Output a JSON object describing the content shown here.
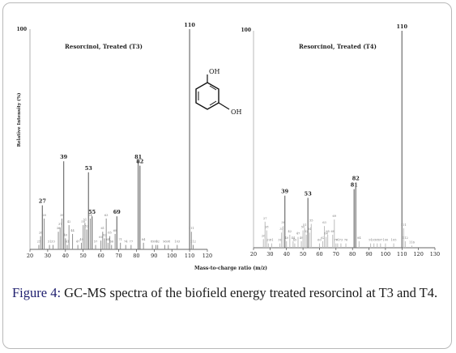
{
  "caption": {
    "label": "Figure 4:",
    "text": " GC-MS spectra of the biofield energy treated resorcinol at T3 and T4."
  },
  "structure": {
    "oh_top": "OH",
    "oh_bottom": "OH"
  },
  "shared_axes": {
    "xlabel": "Mass-to-charge ratio (m/z)",
    "ylabel": "Relative Intensity (%)"
  },
  "colors": {
    "t3_peaks": "#8f8f8f",
    "t4_peaks": "#bcbcbc",
    "axis": "#222222"
  },
  "chart_data": [
    {
      "type": "bar",
      "title": "Resorcinol, Treated (T3)",
      "ylabel": "Relative Intensity (%)",
      "xlabel": "Mass-to-charge ratio (m/z)",
      "xlim": [
        20,
        120
      ],
      "ylim": [
        0,
        100
      ],
      "xticks": [
        20,
        30,
        40,
        50,
        60,
        70,
        80,
        90,
        100,
        110,
        120
      ],
      "ytick_label": "100",
      "peaks": [
        {
          "mz": 25,
          "intensity": 2,
          "label": "25"
        },
        {
          "mz": 26,
          "intensity": 6,
          "label": "26"
        },
        {
          "mz": 27,
          "intensity": 20,
          "label": "27"
        },
        {
          "mz": 28,
          "intensity": 14,
          "label": "28"
        },
        {
          "mz": 31,
          "intensity": 2,
          "label": "31"
        },
        {
          "mz": 33,
          "intensity": 2,
          "label": "33"
        },
        {
          "mz": 36,
          "intensity": 8,
          "label": "36"
        },
        {
          "mz": 37,
          "intensity": 10,
          "label": "37"
        },
        {
          "mz": 38,
          "intensity": 14,
          "label": "38"
        },
        {
          "mz": 39,
          "intensity": 40,
          "label": "39"
        },
        {
          "mz": 40,
          "intensity": 5,
          "label": "40"
        },
        {
          "mz": 41,
          "intensity": 2,
          "label": "41"
        },
        {
          "mz": 42,
          "intensity": 11,
          "label": "42"
        },
        {
          "mz": 44,
          "intensity": 7,
          "label": "44"
        },
        {
          "mz": 47,
          "intensity": 2,
          "label": "47"
        },
        {
          "mz": 49,
          "intensity": 3,
          "label": "49"
        },
        {
          "mz": 50,
          "intensity": 11,
          "label": "50"
        },
        {
          "mz": 51,
          "intensity": 12,
          "label": "51"
        },
        {
          "mz": 52,
          "intensity": 9,
          "label": "52"
        },
        {
          "mz": 53,
          "intensity": 35,
          "label": "53"
        },
        {
          "mz": 54,
          "intensity": 14,
          "label": "54"
        },
        {
          "mz": 55,
          "intensity": 15,
          "label": "55"
        },
        {
          "mz": 57,
          "intensity": 2,
          "label": "57"
        },
        {
          "mz": 60,
          "intensity": 4,
          "label": "60"
        },
        {
          "mz": 61,
          "intensity": 8,
          "label": "61"
        },
        {
          "mz": 62,
          "intensity": 5,
          "label": "62"
        },
        {
          "mz": 63,
          "intensity": 14,
          "label": "63"
        },
        {
          "mz": 64,
          "intensity": 3,
          "label": "64"
        },
        {
          "mz": 65,
          "intensity": 6,
          "label": "65"
        },
        {
          "mz": 66,
          "intensity": 2,
          "label": "66"
        },
        {
          "mz": 68,
          "intensity": 7,
          "label": "68"
        },
        {
          "mz": 69,
          "intensity": 15,
          "label": "69"
        },
        {
          "mz": 71,
          "intensity": 3,
          "label": "71"
        },
        {
          "mz": 74,
          "intensity": 2,
          "label": "74"
        },
        {
          "mz": 77,
          "intensity": 2,
          "label": "77"
        },
        {
          "mz": 81,
          "intensity": 40,
          "label": "81"
        },
        {
          "mz": 82,
          "intensity": 38,
          "label": "82"
        },
        {
          "mz": 84,
          "intensity": 3,
          "label": "84"
        },
        {
          "mz": 89,
          "intensity": 2,
          "label": "89"
        },
        {
          "mz": 91,
          "intensity": 2,
          "label": "91"
        },
        {
          "mz": 92,
          "intensity": 2,
          "label": "92"
        },
        {
          "mz": 96,
          "intensity": 2,
          "label": "96"
        },
        {
          "mz": 98,
          "intensity": 2,
          "label": "98"
        },
        {
          "mz": 103,
          "intensity": 2,
          "label": "103"
        },
        {
          "mz": 110,
          "intensity": 100,
          "label": "110"
        },
        {
          "mz": 111,
          "intensity": 8,
          "label": "111"
        },
        {
          "mz": 112,
          "intensity": 2,
          "label": "112"
        }
      ]
    },
    {
      "type": "bar",
      "title": "Resorcinol, Treated (T4)",
      "xlim": [
        20,
        130
      ],
      "ylim": [
        0,
        100
      ],
      "xticks": [
        20,
        30,
        40,
        50,
        60,
        70,
        80,
        90,
        100,
        110,
        120,
        130
      ],
      "ytick_label": "100",
      "peaks": [
        {
          "mz": 26,
          "intensity": 4,
          "label": "26"
        },
        {
          "mz": 27,
          "intensity": 12,
          "label": "27"
        },
        {
          "mz": 28,
          "intensity": 8,
          "label": "28"
        },
        {
          "mz": 29,
          "intensity": 2,
          "label": "29"
        },
        {
          "mz": 31,
          "intensity": 2,
          "label": "31"
        },
        {
          "mz": 36,
          "intensity": 2,
          "label": "36"
        },
        {
          "mz": 37,
          "intensity": 7,
          "label": "37"
        },
        {
          "mz": 38,
          "intensity": 10,
          "label": "38"
        },
        {
          "mz": 39,
          "intensity": 24,
          "label": "39"
        },
        {
          "mz": 40,
          "intensity": 3,
          "label": "40"
        },
        {
          "mz": 42,
          "intensity": 6,
          "label": "42"
        },
        {
          "mz": 44,
          "intensity": 3,
          "label": "44"
        },
        {
          "mz": 45,
          "intensity": 2,
          "label": "45"
        },
        {
          "mz": 47,
          "intensity": 5,
          "label": "47"
        },
        {
          "mz": 49,
          "intensity": 3,
          "label": "49"
        },
        {
          "mz": 50,
          "intensity": 8,
          "label": "50"
        },
        {
          "mz": 51,
          "intensity": 9,
          "label": "51"
        },
        {
          "mz": 52,
          "intensity": 6,
          "label": "52"
        },
        {
          "mz": 53,
          "intensity": 23,
          "label": "53"
        },
        {
          "mz": 54,
          "intensity": 7,
          "label": "54"
        },
        {
          "mz": 55,
          "intensity": 11,
          "label": "55"
        },
        {
          "mz": 60,
          "intensity": 2,
          "label": "60"
        },
        {
          "mz": 62,
          "intensity": 3,
          "label": "62"
        },
        {
          "mz": 63,
          "intensity": 10,
          "label": "63"
        },
        {
          "mz": 64,
          "intensity": 5,
          "label": "64"
        },
        {
          "mz": 65,
          "intensity": 6,
          "label": "65"
        },
        {
          "mz": 68,
          "intensity": 6,
          "label": "68"
        },
        {
          "mz": 69,
          "intensity": 13,
          "label": "69"
        },
        {
          "mz": 70,
          "intensity": 2,
          "label": "70"
        },
        {
          "mz": 71,
          "intensity": 2,
          "label": "71"
        },
        {
          "mz": 73,
          "intensity": 2,
          "label": "73"
        },
        {
          "mz": 76,
          "intensity": 2,
          "label": "76"
        },
        {
          "mz": 81,
          "intensity": 27,
          "label": "81"
        },
        {
          "mz": 82,
          "intensity": 30,
          "label": "82"
        },
        {
          "mz": 84,
          "intensity": 3,
          "label": "84"
        },
        {
          "mz": 91,
          "intensity": 2,
          "label": "91"
        },
        {
          "mz": 93,
          "intensity": 2,
          "label": "93"
        },
        {
          "mz": 95,
          "intensity": 2,
          "label": "95"
        },
        {
          "mz": 97,
          "intensity": 2,
          "label": "97"
        },
        {
          "mz": 100,
          "intensity": 2,
          "label": "100"
        },
        {
          "mz": 105,
          "intensity": 2,
          "label": "105"
        },
        {
          "mz": 110,
          "intensity": 100,
          "label": "110"
        },
        {
          "mz": 111,
          "intensity": 9,
          "label": "111"
        },
        {
          "mz": 112,
          "intensity": 3,
          "label": "112"
        },
        {
          "mz": 116,
          "intensity": 1,
          "label": "116"
        }
      ]
    }
  ]
}
